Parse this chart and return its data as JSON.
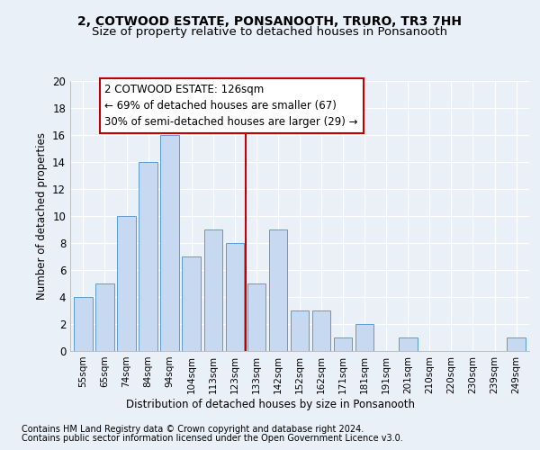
{
  "title1": "2, COTWOOD ESTATE, PONSANOOTH, TRURO, TR3 7HH",
  "title2": "Size of property relative to detached houses in Ponsanooth",
  "xlabel": "Distribution of detached houses by size in Ponsanooth",
  "ylabel": "Number of detached properties",
  "categories": [
    "55sqm",
    "65sqm",
    "74sqm",
    "84sqm",
    "94sqm",
    "104sqm",
    "113sqm",
    "123sqm",
    "133sqm",
    "142sqm",
    "152sqm",
    "162sqm",
    "171sqm",
    "181sqm",
    "191sqm",
    "201sqm",
    "210sqm",
    "220sqm",
    "230sqm",
    "239sqm",
    "249sqm"
  ],
  "values": [
    4,
    5,
    10,
    14,
    16,
    7,
    9,
    8,
    5,
    9,
    3,
    3,
    1,
    2,
    0,
    1,
    0,
    0,
    0,
    0,
    1
  ],
  "bar_color": "#c7d9f0",
  "bar_edge_color": "#5a9bd5",
  "reference_line_x": 7.5,
  "reference_line_color": "#c00000",
  "annotation_text": "2 COTWOOD ESTATE: 126sqm\n← 69% of detached houses are smaller (67)\n30% of semi-detached houses are larger (29) →",
  "annotation_box_color": "#ffffff",
  "annotation_box_edge_color": "#c00000",
  "ylim": [
    0,
    20
  ],
  "yticks": [
    0,
    2,
    4,
    6,
    8,
    10,
    12,
    14,
    16,
    18,
    20
  ],
  "footnote1": "Contains HM Land Registry data © Crown copyright and database right 2024.",
  "footnote2": "Contains public sector information licensed under the Open Government Licence v3.0.",
  "background_color": "#eaf0f8",
  "grid_color": "#ffffff",
  "title_fontsize": 10,
  "subtitle_fontsize": 9.5,
  "label_fontsize": 8.5,
  "tick_fontsize": 7.5,
  "annotation_fontsize": 8.5,
  "footnote_fontsize": 7
}
